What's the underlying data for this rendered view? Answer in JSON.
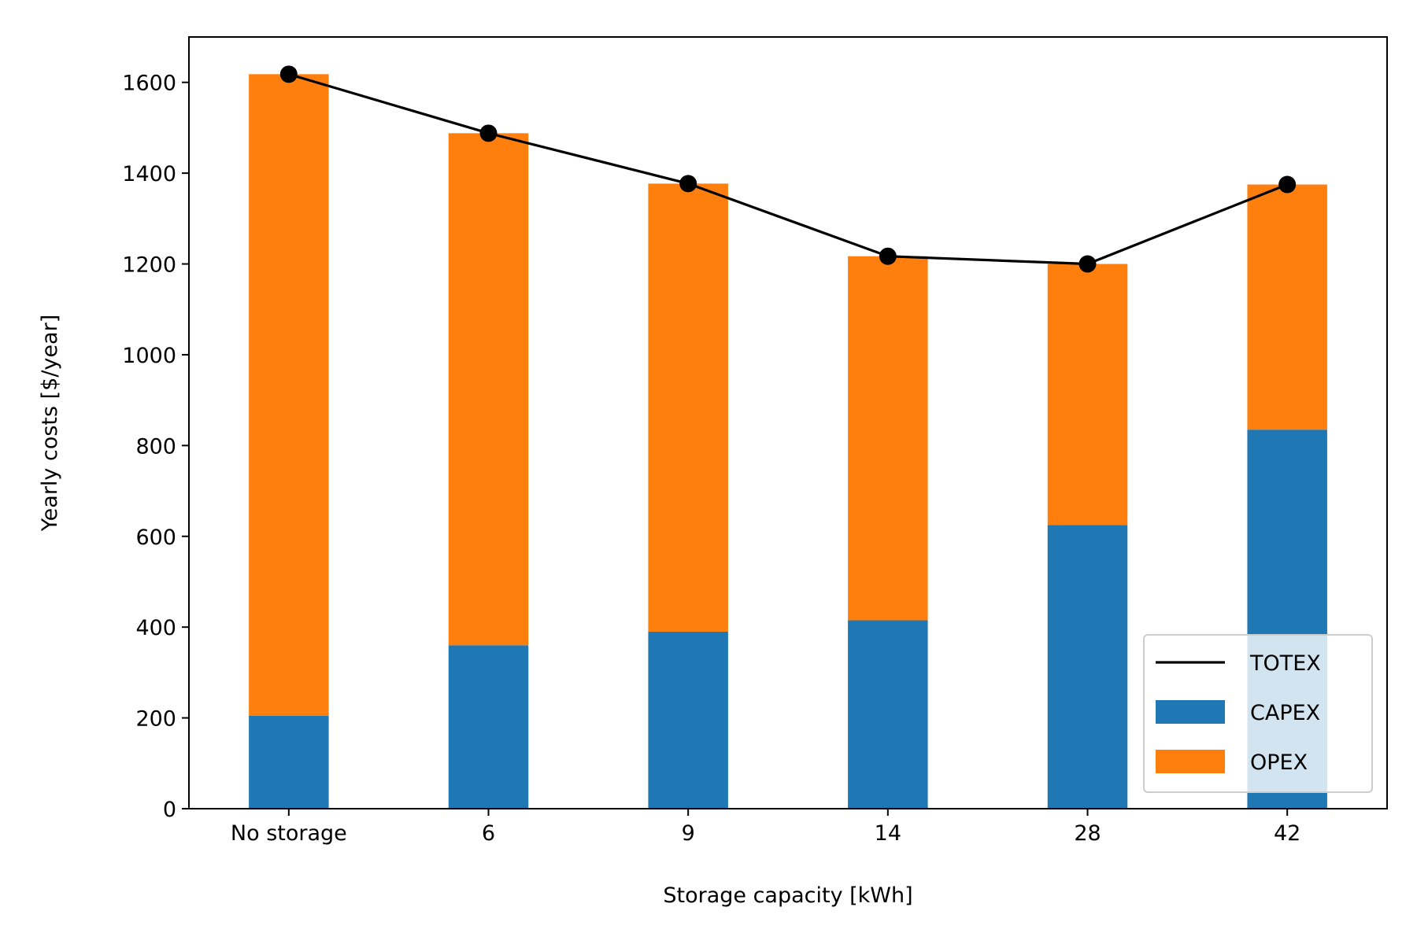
{
  "chart_data": {
    "type": "bar",
    "stacked": true,
    "categories": [
      "No storage",
      "6",
      "9",
      "14",
      "28",
      "42"
    ],
    "series": [
      {
        "name": "CAPEX",
        "kind": "bar",
        "color": "#1f77b4",
        "values": [
          205,
          360,
          390,
          415,
          625,
          835
        ]
      },
      {
        "name": "OPEX",
        "kind": "bar",
        "color": "#ff7f0e",
        "values": [
          1413,
          1128,
          987,
          802,
          575,
          540
        ]
      },
      {
        "name": "TOTEX",
        "kind": "line",
        "color": "#000000",
        "marker": "circle",
        "values": [
          1618,
          1488,
          1377,
          1217,
          1200,
          1375
        ]
      }
    ],
    "xlabel": "Storage capacity [kWh]",
    "ylabel": "Yearly costs [$/year]",
    "ylim": [
      0,
      1700
    ],
    "yticks": [
      0,
      200,
      400,
      600,
      800,
      1000,
      1200,
      1400,
      1600
    ],
    "grid": false,
    "legend": {
      "position": "lower-right",
      "entries": [
        "TOTEX",
        "CAPEX",
        "OPEX"
      ]
    }
  }
}
